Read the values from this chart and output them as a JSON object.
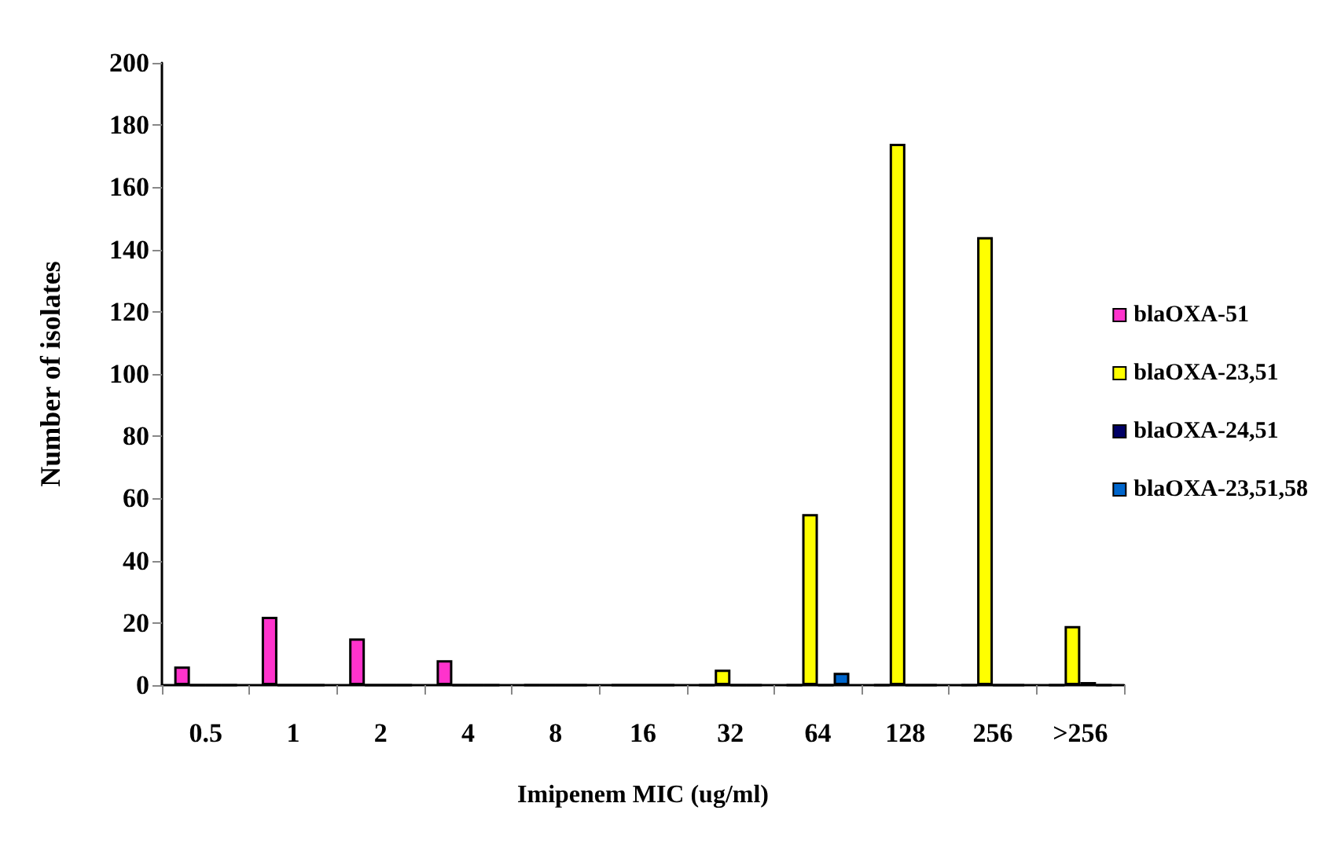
{
  "chart_data": {
    "type": "bar",
    "xlabel": "Imipenem MIC (ug/ml)",
    "ylabel": "Number of isolates",
    "categories": [
      "0.5",
      "1",
      "2",
      "4",
      "8",
      "16",
      "32",
      "64",
      "128",
      "256",
      ">256"
    ],
    "series": [
      {
        "name": "blaOXA-51",
        "color": "#ff33cc",
        "values": [
          6,
          22,
          15,
          8,
          0,
          0,
          0,
          0,
          0,
          0,
          0
        ]
      },
      {
        "name": "blaOXA-23,51",
        "color": "#ffff00",
        "values": [
          0,
          0,
          0,
          0,
          0,
          0,
          5,
          55,
          174,
          144,
          19
        ]
      },
      {
        "name": "blaOXA-24,51",
        "color": "#000066",
        "values": [
          0,
          0,
          0,
          0,
          0,
          0,
          0,
          0,
          0,
          0,
          1
        ]
      },
      {
        "name": "blaOXA-23,51,58",
        "color": "#0066cc",
        "values": [
          0,
          0,
          0,
          0,
          0,
          0,
          0,
          4,
          0,
          0,
          0
        ]
      }
    ],
    "ylim": [
      0,
      200
    ],
    "yticks": [
      0,
      20,
      40,
      60,
      80,
      100,
      120,
      140,
      160,
      180,
      200
    ],
    "grid": false,
    "legend": "right"
  }
}
